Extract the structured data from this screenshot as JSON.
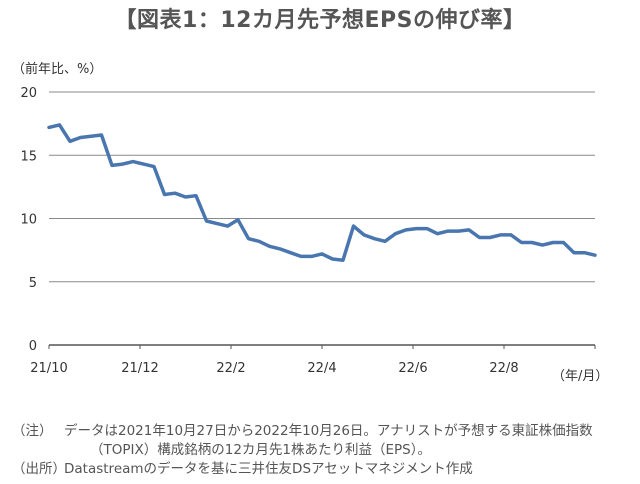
{
  "title": "【図表1：12カ月先予想EPSの伸び率】",
  "chart_data": {
    "type": "line",
    "y_unit_label": "（前年比、%）",
    "x_unit_label": "（年/月）",
    "ylim": [
      0,
      20
    ],
    "y_ticks": [
      "0",
      "5",
      "10",
      "15",
      "20"
    ],
    "grid": true,
    "x_tick_labels": [
      "21/10",
      "21/12",
      "22/2",
      "22/4",
      "22/6",
      "22/8"
    ],
    "x_range": [
      "2021-10-27",
      "2022-10-26"
    ],
    "series": [
      {
        "color": "#4A76B0",
        "x": [
          "2021-10-27",
          "2021-11-03",
          "2021-11-10",
          "2021-11-17",
          "2021-11-24",
          "2021-12-01",
          "2021-12-08",
          "2021-12-15",
          "2021-12-22",
          "2021-12-29",
          "2022-01-05",
          "2022-01-12",
          "2022-01-19",
          "2022-01-26",
          "2022-02-02",
          "2022-02-09",
          "2022-02-16",
          "2022-02-23",
          "2022-03-02",
          "2022-03-09",
          "2022-03-16",
          "2022-03-23",
          "2022-03-30",
          "2022-04-06",
          "2022-04-13",
          "2022-04-20",
          "2022-04-27",
          "2022-05-04",
          "2022-05-11",
          "2022-05-18",
          "2022-05-25",
          "2022-06-01",
          "2022-06-08",
          "2022-06-15",
          "2022-06-22",
          "2022-06-29",
          "2022-07-06",
          "2022-07-13",
          "2022-07-20",
          "2022-07-27",
          "2022-08-03",
          "2022-08-10",
          "2022-08-17",
          "2022-08-24",
          "2022-08-31",
          "2022-09-07",
          "2022-09-14",
          "2022-09-21",
          "2022-09-28",
          "2022-10-05",
          "2022-10-12",
          "2022-10-19",
          "2022-10-26"
        ],
        "y": [
          17.2,
          17.4,
          16.1,
          16.4,
          16.5,
          16.6,
          14.2,
          14.3,
          14.5,
          14.3,
          14.1,
          11.9,
          12.0,
          11.7,
          11.8,
          9.8,
          9.6,
          9.4,
          9.9,
          8.4,
          8.2,
          7.8,
          7.6,
          7.3,
          7.0,
          7.0,
          7.2,
          6.8,
          6.7,
          9.4,
          8.7,
          8.4,
          8.2,
          8.8,
          9.1,
          9.2,
          9.2,
          8.8,
          9.0,
          9.0,
          9.1,
          8.5,
          8.5,
          8.7,
          8.7,
          8.1,
          8.1,
          7.9,
          8.1,
          8.1,
          7.3,
          7.3,
          7.1
        ]
      }
    ]
  },
  "notes": {
    "note_tag": "（注）",
    "note_line1": "データは2021年10月27日から2022年10月26日。アナリストが予想する東証株価指数",
    "note_line2": "（TOPIX）構成銘柄の12カ月先1株あたり利益（EPS）。",
    "source_tag": "（出所）",
    "source_line": "Datastreamのデータを基に三井住友DSアセットマネジメント作成"
  }
}
